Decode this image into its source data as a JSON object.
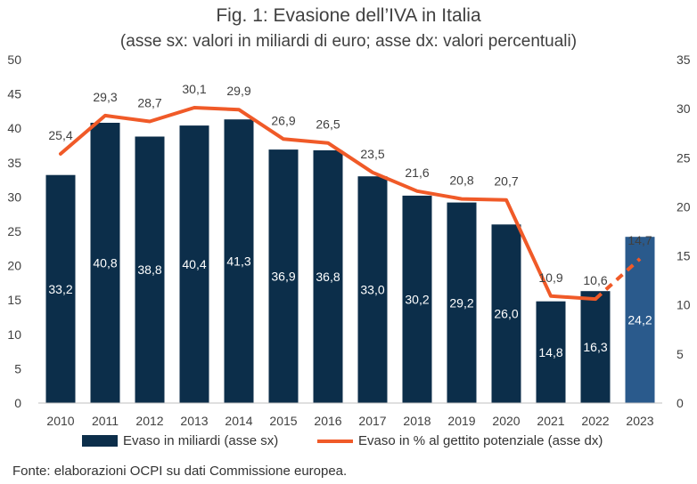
{
  "header": {
    "title": "Fig. 1: Evasione dell’IVA in Italia",
    "subtitle": "(asse sx: valori in miliardi di euro; asse dx: valori percentuali)"
  },
  "footer": {
    "source": "Fonte: elaborazioni OCPI su dati Commissione europea."
  },
  "colors": {
    "bar": "#0c2e4a",
    "bar_projection": "#2a5a8c",
    "line": "#f05a28",
    "axis": "#bfbfbf",
    "text": "#404040"
  },
  "chart_data": {
    "type": "bar",
    "categories": [
      "2010",
      "2011",
      "2012",
      "2013",
      "2014",
      "2015",
      "2016",
      "2017",
      "2018",
      "2019",
      "2020",
      "2021",
      "2022",
      "2023"
    ],
    "series": [
      {
        "name": "Evaso in miliardi (asse sx)",
        "type": "bar",
        "axis": "left",
        "values": [
          33.2,
          40.8,
          38.8,
          40.4,
          41.3,
          36.9,
          36.8,
          33.0,
          30.2,
          29.2,
          26.0,
          14.8,
          16.3,
          24.2
        ],
        "labels": [
          "33,2",
          "40,8",
          "38,8",
          "40,4",
          "41,3",
          "36,9",
          "36,8",
          "33,0",
          "30,2",
          "29,2",
          "26,0",
          "14,8",
          "16,3",
          "24,2"
        ],
        "highlight_last": true
      },
      {
        "name": "Evaso in % al gettito potenziale (asse dx)",
        "type": "line",
        "axis": "right",
        "values": [
          25.4,
          29.3,
          28.7,
          30.1,
          29.9,
          26.9,
          26.5,
          23.5,
          21.6,
          20.8,
          20.7,
          10.9,
          10.6,
          14.7
        ],
        "labels": [
          "25,4",
          "29,3",
          "28,7",
          "30,1",
          "29,9",
          "26,9",
          "26,5",
          "23,5",
          "21,6",
          "20,8",
          "20,7",
          "10,9",
          "10,6",
          "14,7"
        ],
        "dashed_last_segment": true
      }
    ],
    "y_left": {
      "min": 0,
      "max": 50,
      "ticks": [
        "0",
        "5",
        "10",
        "15",
        "20",
        "25",
        "30",
        "35",
        "40",
        "45",
        "50"
      ]
    },
    "y_right": {
      "min": 0,
      "max": 35,
      "ticks": [
        "0",
        "5",
        "10",
        "15",
        "20",
        "25",
        "30",
        "35"
      ]
    },
    "grid": false,
    "legend_position": "bottom"
  }
}
